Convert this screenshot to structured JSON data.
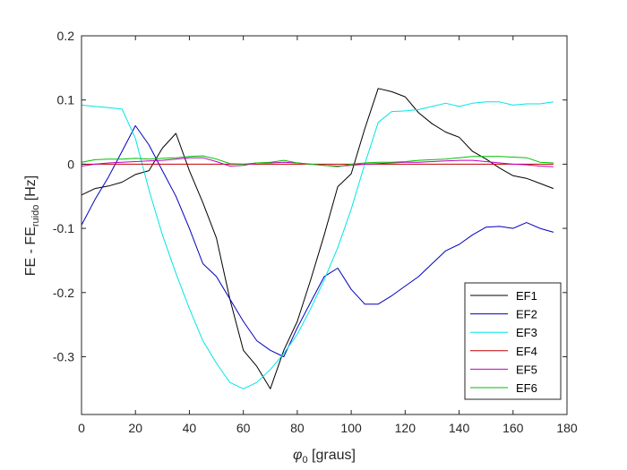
{
  "chart_data": {
    "type": "line",
    "xlabel": {
      "symbol": "φ",
      "sub": "0",
      "rest": " [graus]"
    },
    "ylabel": {
      "main": "FE - FE",
      "sub": "ruido",
      "rest": " [Hz]"
    },
    "xlim": [
      0,
      180
    ],
    "ylim": [
      -0.39,
      0.2
    ],
    "xticks": [
      "0",
      "20",
      "40",
      "60",
      "80",
      "100",
      "120",
      "140",
      "160",
      "180"
    ],
    "yticks": [
      "-0.3",
      "-0.2",
      "-0.1",
      "0",
      "0.1",
      "0.2"
    ],
    "grid": false,
    "legend_position": "bottom-right",
    "x": [
      0,
      5,
      10,
      15,
      20,
      25,
      30,
      35,
      40,
      45,
      50,
      55,
      60,
      65,
      70,
      75,
      80,
      85,
      90,
      95,
      100,
      105,
      110,
      115,
      120,
      125,
      130,
      135,
      140,
      145,
      150,
      155,
      160,
      165,
      170,
      175
    ],
    "series": [
      {
        "name": "EF1",
        "color": "#000000",
        "values": [
          -0.048,
          -0.038,
          -0.034,
          -0.028,
          -0.016,
          -0.01,
          0.025,
          0.048,
          -0.01,
          -0.06,
          -0.115,
          -0.21,
          -0.29,
          -0.315,
          -0.35,
          -0.29,
          -0.245,
          -0.18,
          -0.11,
          -0.035,
          -0.015,
          0.055,
          0.118,
          0.113,
          0.105,
          0.08,
          0.063,
          0.05,
          0.042,
          0.02,
          0.008,
          -0.006,
          -0.018,
          -0.022,
          -0.03,
          -0.038
        ]
      },
      {
        "name": "EF2",
        "color": "#0000bf",
        "values": [
          -0.095,
          -0.055,
          -0.02,
          0.02,
          0.06,
          0.03,
          -0.01,
          -0.05,
          -0.1,
          -0.155,
          -0.175,
          -0.21,
          -0.245,
          -0.275,
          -0.29,
          -0.3,
          -0.255,
          -0.215,
          -0.175,
          -0.162,
          -0.195,
          -0.218,
          -0.218,
          -0.205,
          -0.19,
          -0.175,
          -0.155,
          -0.135,
          -0.125,
          -0.11,
          -0.098,
          -0.097,
          -0.1,
          -0.091,
          -0.1,
          -0.106
        ]
      },
      {
        "name": "EF3",
        "color": "#00e5e5",
        "values": [
          0.092,
          0.09,
          0.088,
          0.086,
          0.04,
          -0.04,
          -0.11,
          -0.17,
          -0.225,
          -0.275,
          -0.31,
          -0.34,
          -0.35,
          -0.34,
          -0.32,
          -0.295,
          -0.265,
          -0.225,
          -0.18,
          -0.13,
          -0.07,
          0.0,
          0.065,
          0.082,
          0.083,
          0.085,
          0.09,
          0.095,
          0.09,
          0.095,
          0.097,
          0.097,
          0.092,
          0.094,
          0.094,
          0.097
        ]
      },
      {
        "name": "EF4",
        "color": "#bf0000",
        "values": [
          0.0,
          0.0,
          0.0,
          0.0,
          0.0,
          0.0,
          0.0,
          0.0,
          0.0,
          0.0,
          0.0,
          0.0,
          0.0,
          0.0,
          0.0,
          0.0,
          0.0,
          0.0,
          0.0,
          0.0,
          0.0,
          0.0,
          0.0,
          0.0,
          0.0,
          0.0,
          0.0,
          0.0,
          0.0,
          0.0,
          0.0,
          0.0,
          0.0,
          0.0,
          0.0,
          0.0
        ]
      },
      {
        "name": "EF5",
        "color": "#bf00bf",
        "values": [
          -0.003,
          0.0,
          0.002,
          0.003,
          0.004,
          0.005,
          0.006,
          0.008,
          0.01,
          0.01,
          0.004,
          -0.003,
          -0.002,
          0.002,
          0.002,
          0.003,
          0.002,
          0.0,
          -0.002,
          -0.003,
          -0.002,
          0.0,
          0.001,
          0.002,
          0.003,
          0.003,
          0.004,
          0.005,
          0.006,
          0.006,
          0.004,
          0.002,
          0.0,
          -0.001,
          -0.003,
          -0.004
        ]
      },
      {
        "name": "EF6",
        "color": "#00bf00",
        "values": [
          0.003,
          0.007,
          0.008,
          0.008,
          0.009,
          0.008,
          0.009,
          0.01,
          0.012,
          0.013,
          0.008,
          0.001,
          0.0,
          0.002,
          0.003,
          0.006,
          0.002,
          0.0,
          -0.002,
          -0.004,
          0.0,
          0.002,
          0.003,
          0.003,
          0.004,
          0.006,
          0.007,
          0.008,
          0.01,
          0.012,
          0.012,
          0.012,
          0.011,
          0.01,
          0.003,
          0.002
        ]
      }
    ]
  }
}
